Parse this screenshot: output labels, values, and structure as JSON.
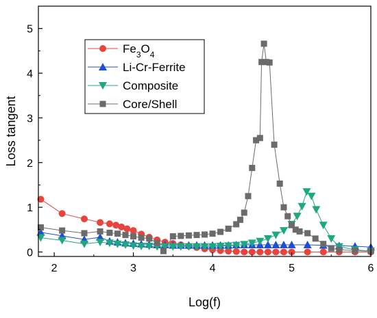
{
  "chart_data": {
    "type": "line",
    "xlabel": "Log(f)",
    "ylabel": "Loss tangent",
    "xlim": [
      1.8,
      6.0
    ],
    "ylim": [
      -0.1,
      5.5
    ],
    "x_ticks": [
      2,
      3,
      4,
      5,
      6
    ],
    "y_ticks": [
      0,
      1,
      2,
      3,
      4,
      5
    ],
    "legend_position": "top-left",
    "series": [
      {
        "name": "Fe3O4",
        "color": "#e8433d",
        "marker": "circle",
        "x": [
          1.83,
          2.1,
          2.38,
          2.58,
          2.7,
          2.78,
          2.85,
          2.92,
          3.0,
          3.1,
          3.2,
          3.3,
          3.4,
          3.5,
          3.6,
          3.7,
          3.8,
          3.9,
          4.0,
          4.1,
          4.2,
          4.3,
          4.4,
          4.5,
          4.6,
          4.7,
          4.8,
          4.9,
          5.0,
          5.2,
          5.4,
          5.6,
          5.8,
          6.0
        ],
        "y": [
          1.18,
          0.86,
          0.74,
          0.66,
          0.63,
          0.6,
          0.56,
          0.52,
          0.48,
          0.4,
          0.33,
          0.27,
          0.22,
          0.19,
          0.16,
          0.13,
          0.1,
          0.07,
          0.05,
          0.03,
          0.02,
          0.01,
          0.0,
          0.0,
          0.0,
          0.0,
          0.0,
          0.0,
          0.0,
          0.0,
          0.0,
          0.0,
          0.0,
          0.0
        ]
      },
      {
        "name": "Li-Cr-Ferrite",
        "color": "#1d4fd6",
        "marker": "triangle-up",
        "x": [
          1.83,
          2.1,
          2.38,
          2.58,
          2.7,
          2.8,
          2.9,
          3.0,
          3.1,
          3.2,
          3.3,
          3.4,
          3.5,
          3.6,
          3.7,
          3.8,
          3.9,
          4.0,
          4.1,
          4.2,
          4.3,
          4.4,
          4.5,
          4.6,
          4.7,
          4.8,
          4.9,
          5.0,
          5.2,
          5.4,
          5.6,
          5.8,
          6.0
        ],
        "y": [
          0.44,
          0.36,
          0.28,
          0.33,
          0.24,
          0.22,
          0.2,
          0.19,
          0.18,
          0.17,
          0.16,
          0.16,
          0.15,
          0.15,
          0.15,
          0.15,
          0.15,
          0.15,
          0.15,
          0.15,
          0.16,
          0.16,
          0.16,
          0.16,
          0.16,
          0.16,
          0.16,
          0.16,
          0.16,
          0.15,
          0.14,
          0.13,
          0.11
        ]
      },
      {
        "name": "Composite",
        "color": "#1fa880",
        "marker": "triangle-down",
        "x": [
          1.83,
          2.1,
          2.38,
          2.58,
          2.7,
          2.8,
          2.9,
          3.0,
          3.1,
          3.2,
          3.3,
          3.4,
          3.5,
          3.6,
          3.7,
          3.8,
          3.9,
          4.0,
          4.1,
          4.2,
          4.3,
          4.4,
          4.5,
          4.6,
          4.7,
          4.8,
          4.9,
          5.0,
          5.07,
          5.13,
          5.19,
          5.25,
          5.31,
          5.4,
          5.5,
          5.6,
          5.8,
          6.0
        ],
        "y": [
          0.32,
          0.26,
          0.18,
          0.22,
          0.2,
          0.18,
          0.16,
          0.14,
          0.13,
          0.13,
          0.12,
          0.12,
          0.12,
          0.12,
          0.12,
          0.12,
          0.12,
          0.12,
          0.13,
          0.14,
          0.15,
          0.17,
          0.2,
          0.24,
          0.3,
          0.38,
          0.48,
          0.62,
          0.8,
          1.02,
          1.35,
          1.25,
          0.95,
          0.6,
          0.3,
          0.12,
          0.05,
          0.02
        ]
      },
      {
        "name": "Core/Shell",
        "color": "#6b6b6b",
        "marker": "square",
        "x": [
          1.83,
          2.1,
          2.38,
          2.58,
          2.7,
          2.8,
          2.9,
          3.0,
          3.1,
          3.2,
          3.3,
          3.38,
          3.5,
          3.6,
          3.7,
          3.8,
          3.9,
          4.0,
          4.1,
          4.2,
          4.3,
          4.35,
          4.4,
          4.45,
          4.5,
          4.55,
          4.6,
          4.62,
          4.65,
          4.68,
          4.72,
          4.78,
          4.85,
          4.9,
          4.95,
          5.0,
          5.05,
          5.1,
          5.2,
          5.3,
          5.4,
          5.5,
          5.6,
          5.8,
          6.0
        ],
        "y": [
          0.55,
          0.48,
          0.42,
          0.46,
          0.43,
          0.41,
          0.38,
          0.35,
          0.32,
          0.3,
          0.2,
          0.02,
          0.35,
          0.36,
          0.37,
          0.38,
          0.39,
          0.41,
          0.45,
          0.52,
          0.62,
          0.72,
          0.88,
          1.25,
          1.88,
          2.5,
          2.55,
          4.25,
          4.66,
          4.25,
          4.24,
          2.4,
          1.53,
          1.0,
          0.8,
          0.6,
          0.5,
          0.46,
          0.42,
          0.3,
          0.18,
          0.08,
          0.05,
          0.03,
          0.02
        ]
      }
    ]
  },
  "legend": {
    "items": [
      {
        "base": "Fe",
        "sub1": "3",
        "mid": "O",
        "sub2": "4"
      },
      {
        "text": "Li-Cr-Ferrite"
      },
      {
        "text": "Composite"
      },
      {
        "text": "Core/Shell"
      }
    ]
  }
}
